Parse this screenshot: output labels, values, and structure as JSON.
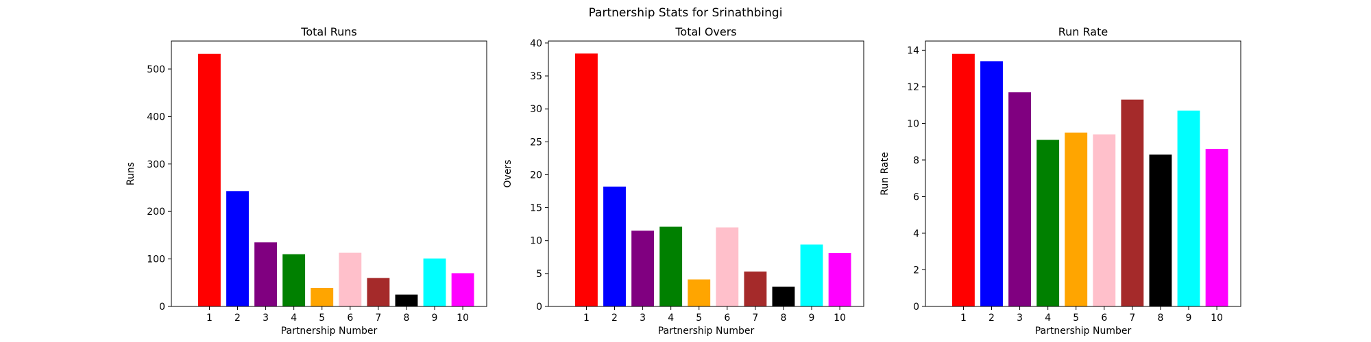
{
  "figure": {
    "suptitle": "Partnership Stats for Srinathbingi"
  },
  "chart_data": [
    {
      "type": "bar",
      "title": "Total Runs",
      "xlabel": "Partnership Number",
      "ylabel": "Runs",
      "categories": [
        "1",
        "2",
        "3",
        "4",
        "5",
        "6",
        "7",
        "8",
        "9",
        "10"
      ],
      "values": [
        532,
        243,
        135,
        110,
        39,
        113,
        60,
        25,
        101,
        70
      ],
      "colors": [
        "#ff0000",
        "#0000ff",
        "#800080",
        "#008000",
        "#ffa500",
        "#ffc0cb",
        "#a52a2a",
        "#000000",
        "#00ffff",
        "#ff00ff"
      ],
      "ylim": [
        0,
        559
      ],
      "yticks": [
        0,
        100,
        200,
        300,
        400,
        500
      ],
      "grid": false
    },
    {
      "type": "bar",
      "title": "Total Overs",
      "xlabel": "Partnership Number",
      "ylabel": "Overs",
      "categories": [
        "1",
        "2",
        "3",
        "4",
        "5",
        "6",
        "7",
        "8",
        "9",
        "10"
      ],
      "values": [
        38.4,
        18.2,
        11.5,
        12.1,
        4.1,
        12.0,
        5.3,
        3.0,
        9.4,
        8.1
      ],
      "colors": [
        "#ff0000",
        "#0000ff",
        "#800080",
        "#008000",
        "#ffa500",
        "#ffc0cb",
        "#a52a2a",
        "#000000",
        "#00ffff",
        "#ff00ff"
      ],
      "ylim": [
        0,
        40.3
      ],
      "yticks": [
        0,
        5,
        10,
        15,
        20,
        25,
        30,
        35,
        40
      ],
      "grid": false
    },
    {
      "type": "bar",
      "title": "Run Rate",
      "xlabel": "Partnership Number",
      "ylabel": "Run Rate",
      "categories": [
        "1",
        "2",
        "3",
        "4",
        "5",
        "6",
        "7",
        "8",
        "9",
        "10"
      ],
      "values": [
        13.8,
        13.4,
        11.7,
        9.1,
        9.5,
        9.4,
        11.3,
        8.3,
        10.7,
        8.6
      ],
      "colors": [
        "#ff0000",
        "#0000ff",
        "#800080",
        "#008000",
        "#ffa500",
        "#ffc0cb",
        "#a52a2a",
        "#000000",
        "#00ffff",
        "#ff00ff"
      ],
      "ylim": [
        0,
        14.5
      ],
      "yticks": [
        0,
        2,
        4,
        6,
        8,
        10,
        12,
        14
      ],
      "grid": false
    }
  ]
}
